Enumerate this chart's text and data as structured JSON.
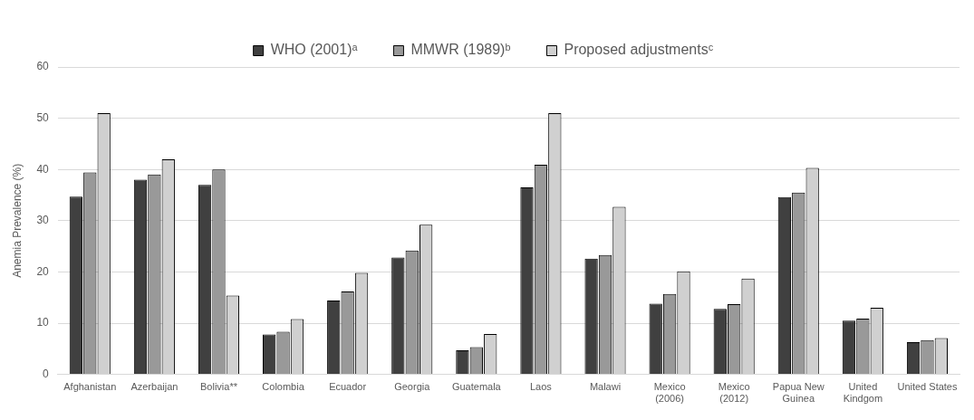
{
  "chart_data": {
    "type": "bar",
    "ylabel": "Anemia Prevalence (%)",
    "categories": [
      "Afghanistan",
      "Azerbaijan",
      "Bolivia**",
      "Colombia",
      "Ecuador",
      "Georgia",
      "Guatemala",
      "Laos",
      "Malawi",
      "Mexico\n(2006)",
      "Mexico\n(2012)",
      "Papua New\nGuinea",
      "United\nKindgom",
      "United States"
    ],
    "series": [
      {
        "name": "WHO (2001)ᵃ",
        "color": "#404040",
        "values": [
          34.7,
          38,
          37,
          7.8,
          14.4,
          22.8,
          4.7,
          36.5,
          22.6,
          13.8,
          12.8,
          34.6,
          10.5,
          6.3
        ]
      },
      {
        "name": "MMWR (1989)ᵇ",
        "color": "#999999",
        "values": [
          39.4,
          39,
          40,
          8.3,
          16.2,
          24.2,
          5.3,
          40.9,
          23.3,
          15.7,
          13.7,
          35.5,
          10.9,
          6.7
        ]
      },
      {
        "name": "Proposed adjustmentsᶜ",
        "color": "#d0d0d0",
        "values": [
          51,
          42,
          15.4,
          10.8,
          19.8,
          29.2,
          7.9,
          51,
          32.7,
          20.1,
          18.7,
          40.3,
          13,
          7.1
        ]
      }
    ],
    "ylim": [
      0,
      60
    ],
    "yticks": [
      0,
      10,
      20,
      30,
      40,
      50,
      60
    ],
    "grid": "y",
    "legend": "top"
  }
}
